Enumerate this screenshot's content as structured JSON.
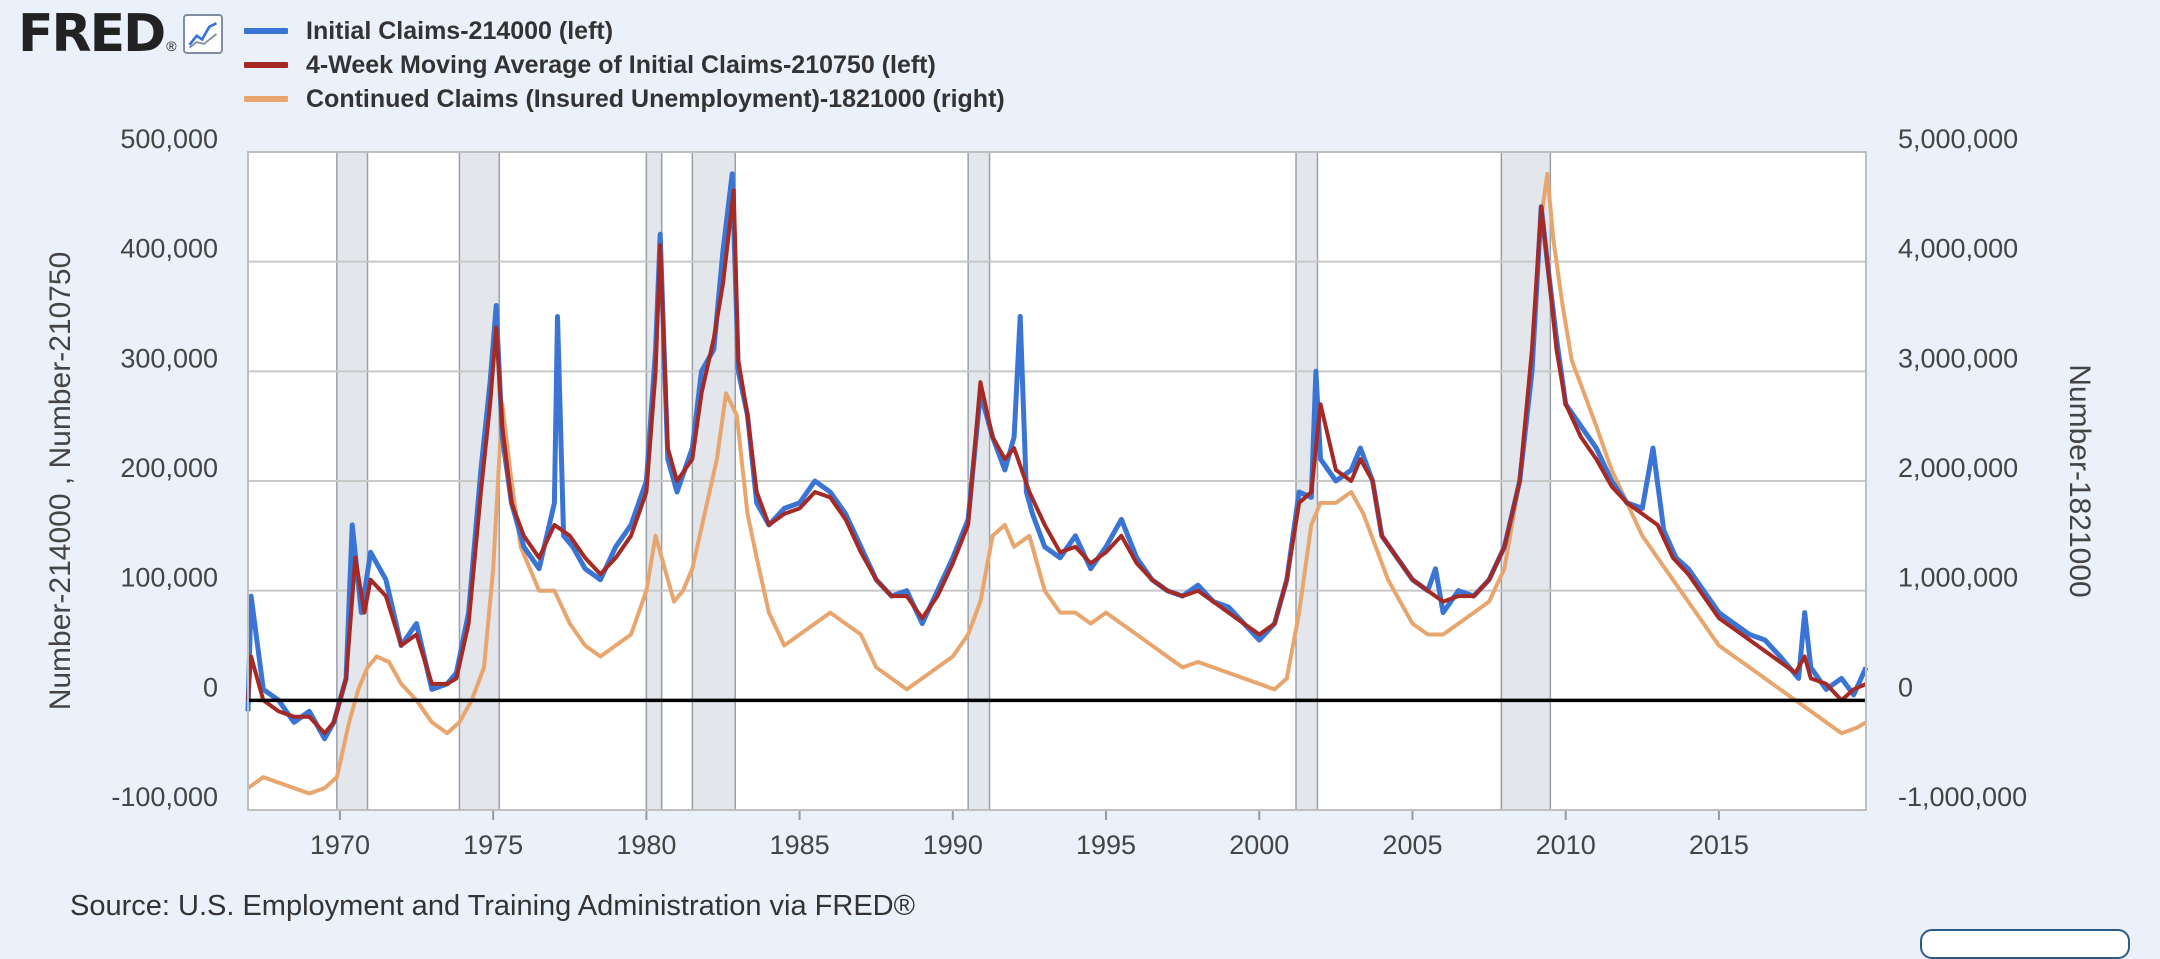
{
  "brand": {
    "name": "FRED",
    "registered": "®"
  },
  "source_text": "Source: U.S. Employment and Training Administration via FRED®",
  "chart_data": {
    "type": "line",
    "title": "",
    "xlabel": "",
    "ylabel_left": "Number-214000 , Number-210750",
    "ylabel_right": "Number-1821000",
    "xlim": [
      1967.0,
      2019.8
    ],
    "ylim_left": [
      -100000,
      500000
    ],
    "ylim_right": [
      -1000000,
      5000000
    ],
    "left_ticks": [
      "500,000",
      "400,000",
      "300,000",
      "200,000",
      "100,000",
      "0",
      "-100,000"
    ],
    "left_tick_values": [
      500000,
      400000,
      300000,
      200000,
      100000,
      0,
      -100000
    ],
    "right_ticks": [
      "5,000,000",
      "4,000,000",
      "3,000,000",
      "2,000,000",
      "1,000,000",
      "0",
      "-1,000,000"
    ],
    "right_tick_values": [
      5000000,
      4000000,
      3000000,
      2000000,
      1000000,
      0,
      -1000000
    ],
    "x_ticks": [
      "1970",
      "1975",
      "1980",
      "1985",
      "1990",
      "1995",
      "2000",
      "2005",
      "2010",
      "2015"
    ],
    "x_tick_values": [
      1970,
      1975,
      1980,
      1985,
      1990,
      1995,
      2000,
      2005,
      2010,
      2015
    ],
    "grid": true,
    "legend_position": "top-left",
    "recessions": [
      [
        1969.9,
        1970.9
      ],
      [
        1973.9,
        1975.2
      ],
      [
        1980.0,
        1980.5
      ],
      [
        1981.5,
        1982.9
      ],
      [
        1990.5,
        1991.2
      ],
      [
        2001.2,
        2001.9
      ],
      [
        2007.9,
        2009.5
      ]
    ],
    "series": [
      {
        "name": "Initial Claims-214000 (left)",
        "color": "#3a75d6",
        "axis": "left",
        "x": [
          1967.0,
          1967.1,
          1967.5,
          1968.0,
          1968.5,
          1969.0,
          1969.5,
          1969.8,
          1970.2,
          1970.4,
          1970.7,
          1971.0,
          1971.5,
          1972.0,
          1972.5,
          1973.0,
          1973.5,
          1973.8,
          1974.2,
          1974.6,
          1974.9,
          1975.1,
          1975.3,
          1975.6,
          1976.0,
          1976.5,
          1977.0,
          1977.1,
          1977.3,
          1977.6,
          1978.0,
          1978.5,
          1979.0,
          1979.5,
          1980.0,
          1980.3,
          1980.45,
          1980.7,
          1981.0,
          1981.5,
          1981.8,
          1982.2,
          1982.5,
          1982.8,
          1983.0,
          1983.3,
          1983.6,
          1984.0,
          1984.5,
          1985.0,
          1985.5,
          1986.0,
          1986.5,
          1987.0,
          1987.5,
          1988.0,
          1988.5,
          1989.0,
          1989.5,
          1990.0,
          1990.5,
          1990.9,
          1991.3,
          1991.7,
          1992.0,
          1992.2,
          1992.4,
          1992.6,
          1993.0,
          1993.5,
          1994.0,
          1994.5,
          1995.0,
          1995.5,
          1996.0,
          1996.5,
          1997.0,
          1997.5,
          1998.0,
          1998.5,
          1999.0,
          1999.5,
          2000.0,
          2000.5,
          2000.9,
          2001.3,
          2001.7,
          2001.85,
          2002.0,
          2002.5,
          2003.0,
          2003.3,
          2003.7,
          2004.0,
          2004.5,
          2005.0,
          2005.5,
          2005.75,
          2006.0,
          2006.5,
          2007.0,
          2007.5,
          2008.0,
          2008.5,
          2008.9,
          2009.2,
          2009.4,
          2009.7,
          2010.0,
          2010.5,
          2011.0,
          2011.5,
          2012.0,
          2012.5,
          2012.85,
          2013.2,
          2013.6,
          2014.0,
          2014.5,
          2015.0,
          2015.5,
          2016.0,
          2016.5,
          2017.0,
          2017.6,
          2017.8,
          2018.0,
          2018.5,
          2019.0,
          2019.4,
          2019.8
        ],
        "y": [
          -10000,
          95000,
          10000,
          0,
          -20000,
          -10000,
          -35000,
          -20000,
          20000,
          160000,
          80000,
          135000,
          110000,
          50000,
          70000,
          10000,
          15000,
          25000,
          80000,
          210000,
          290000,
          360000,
          240000,
          180000,
          140000,
          120000,
          180000,
          350000,
          150000,
          140000,
          120000,
          110000,
          140000,
          160000,
          200000,
          320000,
          425000,
          220000,
          190000,
          230000,
          300000,
          320000,
          410000,
          480000,
          300000,
          260000,
          180000,
          160000,
          175000,
          180000,
          200000,
          190000,
          170000,
          140000,
          110000,
          95000,
          100000,
          70000,
          100000,
          130000,
          165000,
          280000,
          240000,
          210000,
          240000,
          350000,
          190000,
          170000,
          140000,
          130000,
          150000,
          120000,
          140000,
          165000,
          130000,
          110000,
          100000,
          95000,
          105000,
          90000,
          85000,
          70000,
          55000,
          70000,
          110000,
          190000,
          185000,
          300000,
          220000,
          200000,
          210000,
          230000,
          200000,
          150000,
          130000,
          110000,
          100000,
          120000,
          80000,
          100000,
          95000,
          110000,
          140000,
          200000,
          300000,
          450000,
          400000,
          330000,
          270000,
          250000,
          230000,
          200000,
          180000,
          175000,
          230000,
          155000,
          130000,
          120000,
          100000,
          80000,
          70000,
          60000,
          55000,
          40000,
          20000,
          80000,
          30000,
          10000,
          20000,
          5000,
          30000
        ]
      },
      {
        "name": "4-Week Moving Average of Initial Claims-210750 (left)",
        "color": "#a52a26",
        "axis": "left",
        "x": [
          1967.0,
          1967.1,
          1967.5,
          1968.0,
          1968.5,
          1969.0,
          1969.5,
          1969.8,
          1970.2,
          1970.5,
          1970.8,
          1971.0,
          1971.5,
          1972.0,
          1972.5,
          1973.0,
          1973.5,
          1973.8,
          1974.2,
          1974.6,
          1974.9,
          1975.1,
          1975.3,
          1975.6,
          1976.0,
          1976.5,
          1977.0,
          1977.5,
          1978.0,
          1978.5,
          1979.0,
          1979.5,
          1980.0,
          1980.3,
          1980.45,
          1980.7,
          1981.0,
          1981.5,
          1981.8,
          1982.2,
          1982.5,
          1982.85,
          1983.0,
          1983.3,
          1983.6,
          1984.0,
          1984.5,
          1985.0,
          1985.5,
          1986.0,
          1986.5,
          1987.0,
          1987.5,
          1988.0,
          1988.5,
          1989.0,
          1989.5,
          1990.0,
          1990.5,
          1990.9,
          1991.3,
          1991.7,
          1992.0,
          1992.5,
          1993.0,
          1993.5,
          1994.0,
          1994.5,
          1995.0,
          1995.5,
          1996.0,
          1996.5,
          1997.0,
          1997.5,
          1998.0,
          1998.5,
          1999.0,
          1999.5,
          2000.0,
          2000.5,
          2000.9,
          2001.3,
          2001.7,
          2002.0,
          2002.5,
          2003.0,
          2003.3,
          2003.7,
          2004.0,
          2004.5,
          2005.0,
          2005.5,
          2006.0,
          2006.5,
          2007.0,
          2007.5,
          2008.0,
          2008.5,
          2008.9,
          2009.2,
          2009.4,
          2009.7,
          2010.0,
          2010.5,
          2011.0,
          2011.5,
          2012.0,
          2012.5,
          2013.0,
          2013.5,
          2014.0,
          2014.5,
          2015.0,
          2015.5,
          2016.0,
          2016.5,
          2017.0,
          2017.5,
          2017.8,
          2018.0,
          2018.5,
          2019.0,
          2019.4,
          2019.8
        ],
        "y": [
          0,
          40000,
          0,
          -10000,
          -15000,
          -15000,
          -30000,
          -20000,
          20000,
          130000,
          80000,
          110000,
          95000,
          50000,
          60000,
          15000,
          15000,
          20000,
          70000,
          190000,
          270000,
          340000,
          250000,
          180000,
          150000,
          130000,
          160000,
          150000,
          130000,
          115000,
          130000,
          150000,
          190000,
          300000,
          415000,
          230000,
          200000,
          220000,
          280000,
          330000,
          380000,
          465000,
          310000,
          260000,
          190000,
          160000,
          170000,
          175000,
          190000,
          185000,
          165000,
          135000,
          110000,
          95000,
          95000,
          75000,
          95000,
          125000,
          160000,
          290000,
          240000,
          220000,
          230000,
          190000,
          160000,
          135000,
          140000,
          125000,
          135000,
          150000,
          125000,
          110000,
          100000,
          95000,
          100000,
          90000,
          80000,
          70000,
          60000,
          70000,
          110000,
          180000,
          190000,
          270000,
          210000,
          200000,
          220000,
          200000,
          150000,
          130000,
          110000,
          100000,
          90000,
          95000,
          95000,
          110000,
          140000,
          200000,
          320000,
          450000,
          400000,
          320000,
          270000,
          240000,
          220000,
          195000,
          180000,
          170000,
          160000,
          130000,
          115000,
          95000,
          75000,
          65000,
          55000,
          45000,
          35000,
          25000,
          40000,
          20000,
          15000,
          0,
          10000,
          15000
        ]
      },
      {
        "name": "Continued Claims (Insured Unemployment)-1821000 (right)",
        "color": "#e8a66e",
        "axis": "right",
        "x": [
          1967.0,
          1967.5,
          1968.0,
          1968.5,
          1969.0,
          1969.5,
          1969.9,
          1970.3,
          1970.6,
          1970.9,
          1971.2,
          1971.6,
          1972.0,
          1972.5,
          1973.0,
          1973.5,
          1973.9,
          1974.3,
          1974.7,
          1975.0,
          1975.3,
          1975.6,
          1975.9,
          1976.5,
          1977.0,
          1977.5,
          1978.0,
          1978.5,
          1979.0,
          1979.5,
          1980.0,
          1980.3,
          1980.6,
          1980.9,
          1981.2,
          1981.5,
          1981.9,
          1982.3,
          1982.6,
          1982.95,
          1983.3,
          1983.6,
          1984.0,
          1984.5,
          1985.0,
          1985.5,
          1986.0,
          1986.5,
          1987.0,
          1987.5,
          1988.0,
          1988.5,
          1989.0,
          1989.5,
          1990.0,
          1990.5,
          1990.9,
          1991.3,
          1991.7,
          1992.0,
          1992.5,
          1993.0,
          1993.5,
          1994.0,
          1994.5,
          1995.0,
          1995.5,
          1996.0,
          1996.5,
          1997.0,
          1997.5,
          1998.0,
          1998.5,
          1999.0,
          1999.5,
          2000.0,
          2000.5,
          2000.9,
          2001.3,
          2001.7,
          2002.0,
          2002.5,
          2003.0,
          2003.4,
          2003.8,
          2004.2,
          2004.6,
          2005.0,
          2005.5,
          2006.0,
          2006.5,
          2007.0,
          2007.5,
          2008.0,
          2008.5,
          2008.9,
          2009.2,
          2009.4,
          2009.6,
          2009.9,
          2010.2,
          2010.6,
          2011.0,
          2011.5,
          2012.0,
          2012.5,
          2013.0,
          2013.5,
          2014.0,
          2014.5,
          2015.0,
          2015.5,
          2016.0,
          2016.5,
          2017.0,
          2017.5,
          2018.0,
          2018.5,
          2019.0,
          2019.5,
          2019.8
        ],
        "y": [
          -800000,
          -700000,
          -750000,
          -800000,
          -850000,
          -800000,
          -700000,
          -200000,
          100000,
          300000,
          400000,
          350000,
          150000,
          0,
          -200000,
          -300000,
          -200000,
          0,
          300000,
          1200000,
          2700000,
          2000000,
          1400000,
          1000000,
          1000000,
          700000,
          500000,
          400000,
          500000,
          600000,
          1000000,
          1500000,
          1200000,
          900000,
          1000000,
          1200000,
          1700000,
          2200000,
          2800000,
          2600000,
          1700000,
          1300000,
          800000,
          500000,
          600000,
          700000,
          800000,
          700000,
          600000,
          300000,
          200000,
          100000,
          200000,
          300000,
          400000,
          600000,
          900000,
          1500000,
          1600000,
          1400000,
          1500000,
          1000000,
          800000,
          800000,
          700000,
          800000,
          700000,
          600000,
          500000,
          400000,
          300000,
          350000,
          300000,
          250000,
          200000,
          150000,
          100000,
          200000,
          800000,
          1600000,
          1800000,
          1800000,
          1900000,
          1700000,
          1400000,
          1100000,
          900000,
          700000,
          600000,
          600000,
          700000,
          800000,
          900000,
          1200000,
          2000000,
          3200000,
          4400000,
          4800000,
          4200000,
          3600000,
          3100000,
          2800000,
          2500000,
          2100000,
          1800000,
          1500000,
          1300000,
          1100000,
          900000,
          700000,
          500000,
          400000,
          300000,
          200000,
          100000,
          0,
          -100000,
          -200000,
          -300000,
          -250000,
          -200000
        ]
      }
    ]
  },
  "icons": {
    "logo_chart": "line-chart-icon"
  }
}
